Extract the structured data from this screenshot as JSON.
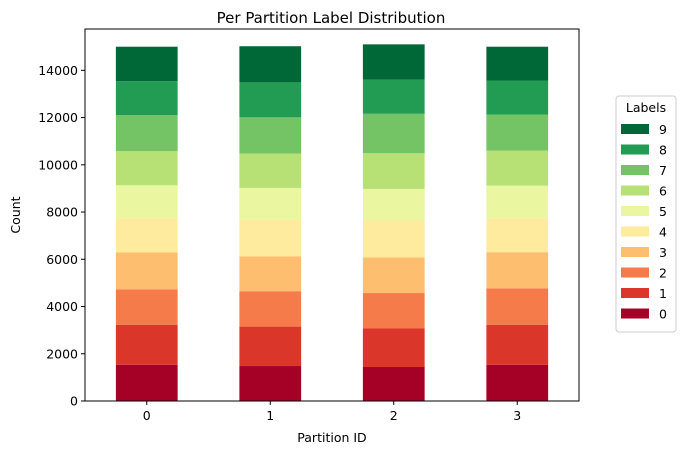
{
  "chart_data": {
    "type": "bar",
    "stacked": true,
    "title": "Per Partition Label Distribution",
    "xlabel": "Partition ID",
    "ylabel": "Count",
    "categories": [
      "0",
      "1",
      "2",
      "3"
    ],
    "ylim": [
      0,
      15750
    ],
    "yticks": [
      0,
      2000,
      4000,
      6000,
      8000,
      10000,
      12000,
      14000
    ],
    "ytick_labels": [
      "0",
      "2000",
      "4000",
      "6000",
      "8000",
      "10000",
      "12000",
      "14000"
    ],
    "legend_title": "Labels",
    "legend_placement": "right",
    "grid": false,
    "series": [
      {
        "name": "0",
        "color": "#a50026",
        "values": [
          1530,
          1480,
          1440,
          1530
        ]
      },
      {
        "name": "1",
        "color": "#da372a",
        "values": [
          1700,
          1670,
          1630,
          1700
        ]
      },
      {
        "name": "2",
        "color": "#f67b4a",
        "values": [
          1500,
          1500,
          1500,
          1540
        ]
      },
      {
        "name": "3",
        "color": "#fdbf6f",
        "values": [
          1560,
          1480,
          1510,
          1530
        ]
      },
      {
        "name": "4",
        "color": "#feeb9d",
        "values": [
          1450,
          1560,
          1560,
          1440
        ]
      },
      {
        "name": "5",
        "color": "#eaf7a0",
        "values": [
          1390,
          1330,
          1340,
          1380
        ]
      },
      {
        "name": "6",
        "color": "#b7e075",
        "values": [
          1450,
          1460,
          1510,
          1480
        ]
      },
      {
        "name": "7",
        "color": "#74c365",
        "values": [
          1520,
          1530,
          1670,
          1530
        ]
      },
      {
        "name": "8",
        "color": "#229c52",
        "values": [
          1440,
          1480,
          1440,
          1440
        ]
      },
      {
        "name": "9",
        "color": "#006837",
        "values": [
          1460,
          1530,
          1500,
          1430
        ]
      }
    ]
  }
}
